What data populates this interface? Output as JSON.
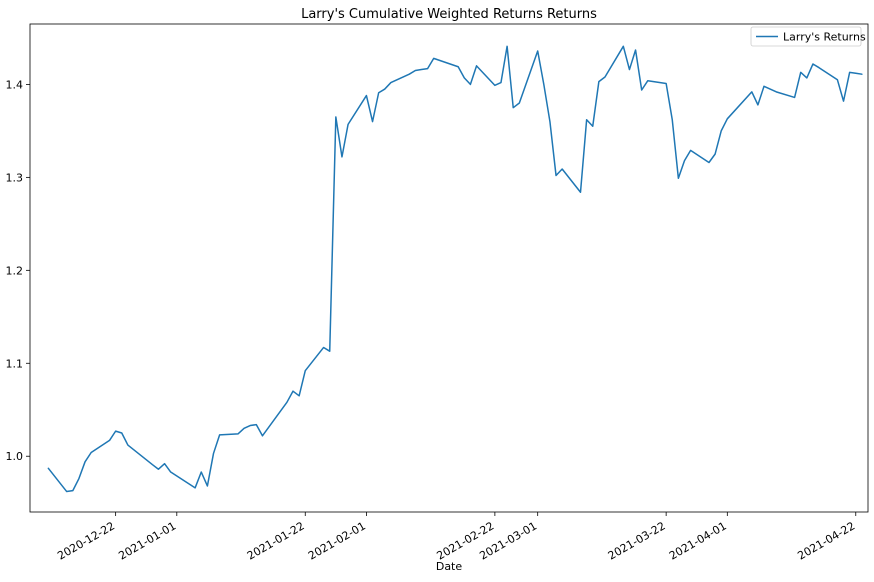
{
  "chart_data": {
    "type": "line",
    "title": "Larry's Cumulative Weighted Returns Returns",
    "xlabel": "Date",
    "ylabel": "",
    "x_type": "date",
    "xlim": [
      "2020-12-08",
      "2021-04-24"
    ],
    "ylim": [
      0.94,
      1.465
    ],
    "x_ticks": [
      "2020-12-22",
      "2021-01-01",
      "2021-01-22",
      "2021-02-01",
      "2021-02-22",
      "2021-03-01",
      "2021-03-22",
      "2021-04-01",
      "2021-04-22"
    ],
    "y_ticks": [
      1.0,
      1.1,
      1.2,
      1.3,
      1.4
    ],
    "y_tick_labels": [
      "1.0",
      "1.1",
      "1.2",
      "1.3",
      "1.4"
    ],
    "grid": false,
    "legend_position": "top-right",
    "color": "#1f77b4",
    "series": [
      {
        "name": "Larry's Returns",
        "x": [
          "2020-12-11",
          "2020-12-14",
          "2020-12-15",
          "2020-12-16",
          "2020-12-17",
          "2020-12-18",
          "2020-12-21",
          "2020-12-22",
          "2020-12-23",
          "2020-12-24",
          "2020-12-28",
          "2020-12-29",
          "2020-12-30",
          "2020-12-31",
          "2021-01-04",
          "2021-01-05",
          "2021-01-06",
          "2021-01-07",
          "2021-01-08",
          "2021-01-11",
          "2021-01-12",
          "2021-01-13",
          "2021-01-14",
          "2021-01-15",
          "2021-01-19",
          "2021-01-20",
          "2021-01-21",
          "2021-01-22",
          "2021-01-25",
          "2021-01-26",
          "2021-01-27",
          "2021-01-28",
          "2021-01-29",
          "2021-02-01",
          "2021-02-02",
          "2021-02-03",
          "2021-02-04",
          "2021-02-05",
          "2021-02-08",
          "2021-02-09",
          "2021-02-10",
          "2021-02-11",
          "2021-02-12",
          "2021-02-16",
          "2021-02-17",
          "2021-02-18",
          "2021-02-19",
          "2021-02-22",
          "2021-02-23",
          "2021-02-24",
          "2021-02-25",
          "2021-02-26",
          "2021-03-01",
          "2021-03-02",
          "2021-03-03",
          "2021-03-04",
          "2021-03-05",
          "2021-03-08",
          "2021-03-09",
          "2021-03-10",
          "2021-03-11",
          "2021-03-12",
          "2021-03-15",
          "2021-03-16",
          "2021-03-17",
          "2021-03-18",
          "2021-03-19",
          "2021-03-22",
          "2021-03-23",
          "2021-03-24",
          "2021-03-25",
          "2021-03-26",
          "2021-03-29",
          "2021-03-30",
          "2021-03-31",
          "2021-04-01",
          "2021-04-05",
          "2021-04-06",
          "2021-04-07",
          "2021-04-08",
          "2021-04-09",
          "2021-04-12",
          "2021-04-13",
          "2021-04-14",
          "2021-04-15",
          "2021-04-16",
          "2021-04-19",
          "2021-04-20",
          "2021-04-21",
          "2021-04-22",
          "2021-04-23"
        ],
        "values": [
          0.987,
          0.962,
          0.963,
          0.976,
          0.994,
          1.004,
          1.017,
          1.027,
          1.025,
          1.012,
          0.991,
          0.986,
          0.992,
          0.983,
          0.966,
          0.983,
          0.968,
          1.003,
          1.023,
          1.024,
          1.03,
          1.033,
          1.034,
          1.022,
          1.058,
          1.07,
          1.065,
          1.092,
          1.117,
          1.113,
          1.365,
          1.322,
          1.357,
          1.388,
          1.36,
          1.391,
          1.395,
          1.402,
          1.411,
          1.415,
          1.416,
          1.417,
          1.428,
          1.419,
          1.407,
          1.4,
          1.42,
          1.399,
          1.402,
          1.441,
          1.375,
          1.38,
          1.436,
          1.4,
          1.36,
          1.302,
          1.309,
          1.284,
          1.362,
          1.355,
          1.403,
          1.408,
          1.441,
          1.416,
          1.437,
          1.394,
          1.404,
          1.401,
          1.362,
          1.299,
          1.318,
          1.329,
          1.316,
          1.325,
          1.35,
          1.363,
          1.392,
          1.378,
          1.398,
          1.395,
          1.392,
          1.386,
          1.413,
          1.407,
          1.422,
          1.418,
          1.405,
          1.382,
          1.413,
          1.412,
          1.411
        ]
      }
    ]
  }
}
